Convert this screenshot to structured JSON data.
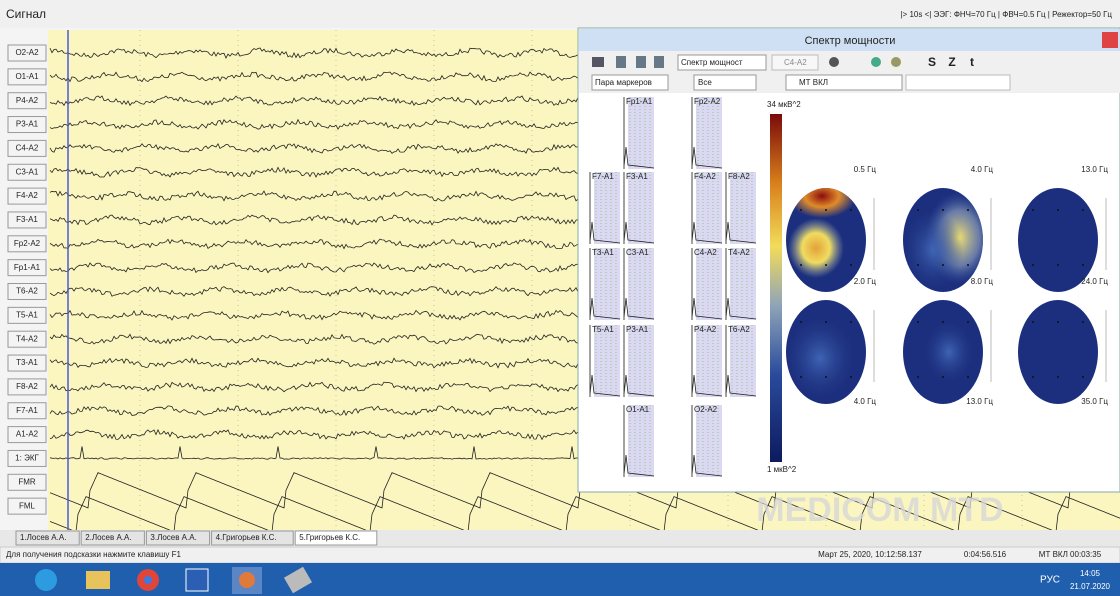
{
  "window": {
    "title": "Сигнал",
    "filter_info": "|> 10s <|  ЭЭГ: ФНЧ=70 Гц | ФВЧ=0.5 Гц | Режектор=50 Гц"
  },
  "channels": [
    "O2-A2",
    "O1-A1",
    "P4-A2",
    "P3-A1",
    "C4-A2",
    "C3-A1",
    "F4-A2",
    "F3-A1",
    "Fp2-A2",
    "Fp1-A1",
    "T6-A2",
    "T5-A1",
    "T4-A2",
    "T3-A1",
    "F8-A2",
    "F7-A1",
    "A1-A2",
    "1: ЭКГ",
    "FMR",
    "FML"
  ],
  "spectrum_window": {
    "title": "Спектр мощности",
    "toolbar": {
      "mode": "Спектр мощност",
      "channel": "C4-A2",
      "buttons": [
        "S",
        "Z",
        "t"
      ],
      "markers": "Пара маркеров",
      "filter": "Все",
      "mt": "МТ ВКЛ"
    },
    "plots": [
      "Fp1-A1",
      "Fp2-A2",
      "F7-A1",
      "F3-A1",
      "F4-A2",
      "F8-A2",
      "T3-A1",
      "C3-A1",
      "C4-A2",
      "T4-A2",
      "T5-A1",
      "P3-A1",
      "P4-A2",
      "T6-A2",
      "O1-A1",
      "O2-A2"
    ],
    "colorbar": {
      "max_label": "34 мкВ^2",
      "min_label": "1 мкВ^2"
    },
    "map_labels": [
      "0.5 Гц",
      "4.0 Гц",
      "13.0 Гц",
      "2.0 Гц",
      "8.0 Гц",
      "24.0 Гц",
      "4.0 Гц",
      "13.0 Гц",
      "35.0 Гц"
    ]
  },
  "watermark": "MEDICOM MTD",
  "tabs": [
    "1.Лосев А.А.",
    "2.Лосев А.А.",
    "3.Лосев А.А.",
    "4.Григорьев К.С.",
    "5.Григорьев К.С."
  ],
  "status_bar": {
    "hint": "Для получения подсказки нажмите клавишу F1",
    "datetime": "Март 25, 2020, 10:12:58.137",
    "elapsed": "0:04:56.516",
    "mt": "МТ ВКЛ 00:03:35"
  },
  "taskbar": {
    "language": "РУС",
    "time": "14:05",
    "date": "21.07.2020"
  }
}
